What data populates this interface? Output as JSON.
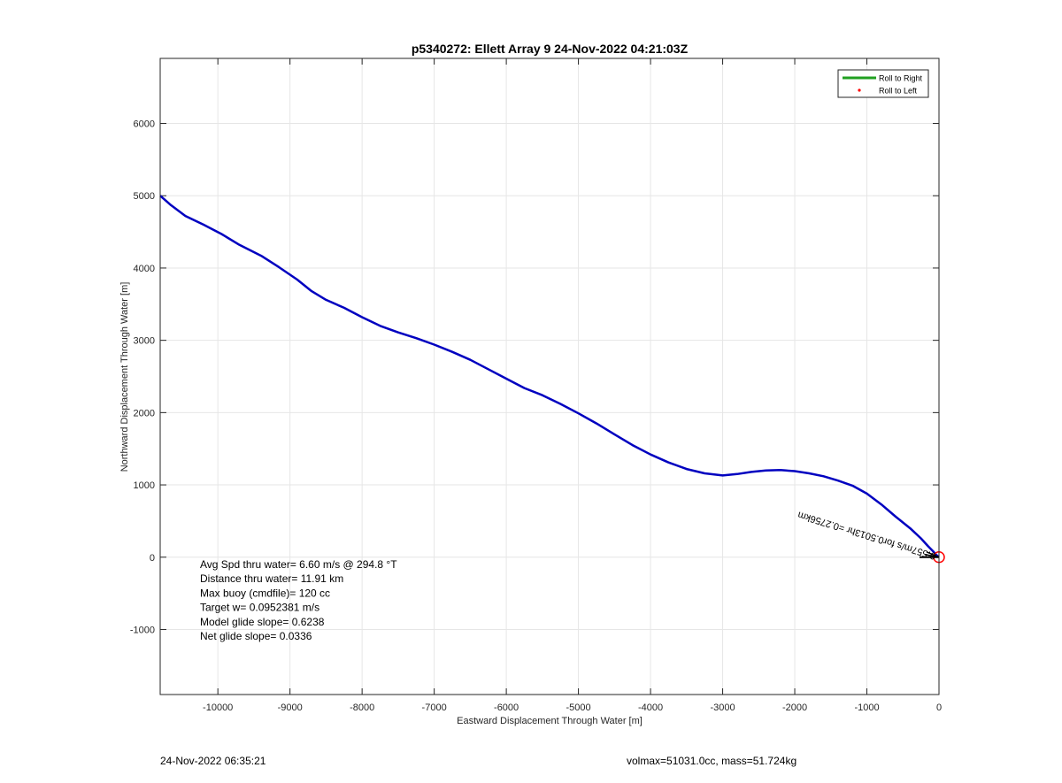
{
  "chart_data": {
    "type": "line",
    "title": "p5340272: Ellett Array 9 24-Nov-2022 04:21:03Z",
    "xlabel": "Eastward Displacement Through Water [m]",
    "ylabel": "Northward Displacement Through Water [m]",
    "xlim": [
      -10800,
      0
    ],
    "ylim": [
      -1900,
      6900
    ],
    "x_ticks": [
      -10000,
      -9000,
      -8000,
      -7000,
      -6000,
      -5000,
      -4000,
      -3000,
      -2000,
      -1000,
      0
    ],
    "y_ticks": [
      -1000,
      0,
      1000,
      2000,
      3000,
      4000,
      5000,
      6000
    ],
    "grid": true,
    "legend_position": "top-right",
    "legend": [
      {
        "label": "Roll to Right",
        "color": "#22a022",
        "marker": "line"
      },
      {
        "label": "Roll to Left",
        "color": "#ff0000",
        "marker": "dot"
      }
    ],
    "series": [
      {
        "color": "#0000c0",
        "x": [
          -10800,
          -10650,
          -10450,
          -10200,
          -9950,
          -9700,
          -9400,
          -9150,
          -8900,
          -8700,
          -8500,
          -8250,
          -8000,
          -7750,
          -7500,
          -7250,
          -7000,
          -6750,
          -6500,
          -6250,
          -6000,
          -5750,
          -5500,
          -5250,
          -5000,
          -4750,
          -4500,
          -4250,
          -4000,
          -3750,
          -3500,
          -3250,
          -3000,
          -2800,
          -2600,
          -2400,
          -2200,
          -2000,
          -1800,
          -1600,
          -1400,
          -1200,
          -1000,
          -800,
          -600,
          -400,
          -250,
          -150,
          -80,
          -40,
          0
        ],
        "y": [
          5000,
          4870,
          4720,
          4600,
          4470,
          4320,
          4170,
          4010,
          3840,
          3680,
          3560,
          3450,
          3320,
          3200,
          3110,
          3030,
          2940,
          2840,
          2730,
          2600,
          2470,
          2340,
          2240,
          2120,
          1990,
          1850,
          1700,
          1550,
          1420,
          1310,
          1220,
          1160,
          1130,
          1150,
          1180,
          1200,
          1205,
          1190,
          1160,
          1120,
          1060,
          990,
          880,
          730,
          560,
          400,
          260,
          150,
          80,
          35,
          0
        ]
      }
    ],
    "annotations": [
      "Avg Spd thru water=  6.60 m/s @ 294.8 °T",
      "Distance thru water= 11.91 km",
      "Max buoy (cmdfile)= 120 cc",
      "Target w= 0.0952381 m/s",
      "Model glide slope= 0.6238",
      "Net glide slope= 0.0336"
    ],
    "rotated_label": "0.557m/s for0.5013hr =0.2756km",
    "end_marker": {
      "x": 0,
      "y": 0,
      "color": "#ff0000"
    }
  },
  "footer": {
    "left": "24-Nov-2022 06:35:21",
    "right": "volmax=51031.0cc, mass=51.724kg"
  }
}
